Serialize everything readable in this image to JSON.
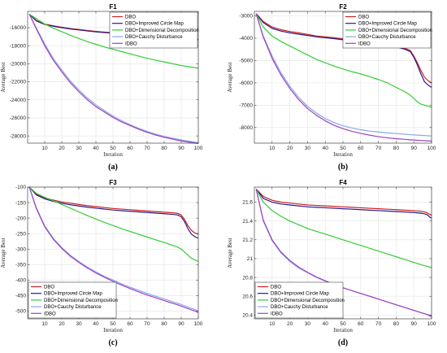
{
  "chart_data": [
    {
      "type": "line",
      "title": "F1",
      "panel_label": "(a)",
      "xlabel": "Iteration",
      "ylabel": "Average Best",
      "xlim": [
        0,
        100
      ],
      "ylim": [
        -28800,
        -14200
      ],
      "xticks": [
        10,
        20,
        30,
        40,
        50,
        60,
        70,
        80,
        90,
        100
      ],
      "yticks": [
        -28000,
        -26000,
        -24000,
        -22000,
        -20000,
        -18000,
        -16000
      ],
      "legend_position": "top-right",
      "x": [
        1,
        5,
        10,
        15,
        20,
        25,
        30,
        35,
        40,
        45,
        50,
        55,
        60,
        65,
        70,
        75,
        80,
        85,
        90,
        95,
        100
      ],
      "series": [
        {
          "name": "DBO",
          "color": "#cc2020",
          "values": [
            -14500,
            -15200,
            -15600,
            -15800,
            -15950,
            -16100,
            -16200,
            -16320,
            -16420,
            -16500,
            -16580,
            -16650,
            -16720,
            -16790,
            -16850,
            -16920,
            -16990,
            -17060,
            -17130,
            -17200,
            -17300
          ]
        },
        {
          "name": "DBO+Improved Circle Map",
          "color": "#2a1a8a",
          "values": [
            -14500,
            -15250,
            -15650,
            -15850,
            -16000,
            -16150,
            -16250,
            -16370,
            -16470,
            -16550,
            -16630,
            -16700,
            -16770,
            -16840,
            -16900,
            -16970,
            -17040,
            -17110,
            -17180,
            -17250,
            -17350
          ]
        },
        {
          "name": "DBO+Dimensional Decomposition",
          "color": "#33cc33",
          "values": [
            -14500,
            -15000,
            -15600,
            -16050,
            -16450,
            -16850,
            -17200,
            -17550,
            -17850,
            -18150,
            -18400,
            -18650,
            -18900,
            -19150,
            -19400,
            -19600,
            -19800,
            -20000,
            -20200,
            -20350,
            -20500
          ]
        },
        {
          "name": "DBO+Cauchy Disturbance",
          "color": "#88a8e8",
          "values": [
            -14500,
            -16000,
            -17800,
            -19400,
            -20700,
            -21900,
            -22900,
            -23800,
            -24550,
            -25200,
            -25800,
            -26300,
            -26750,
            -27150,
            -27500,
            -27800,
            -28050,
            -28250,
            -28450,
            -28600,
            -28750
          ]
        },
        {
          "name": "IDBO",
          "color": "#a040c0",
          "values": [
            -14500,
            -16100,
            -18000,
            -19600,
            -20900,
            -22100,
            -23100,
            -24000,
            -24750,
            -25350,
            -25950,
            -26450,
            -26850,
            -27250,
            -27600,
            -27900,
            -28150,
            -28350,
            -28550,
            -28700,
            -28850
          ]
        }
      ]
    },
    {
      "type": "line",
      "title": "F2",
      "panel_label": "(b)",
      "xlabel": "Iteration",
      "ylabel": "Average Best",
      "xlim": [
        0,
        100
      ],
      "ylim": [
        -8700,
        -2800
      ],
      "xticks": [
        10,
        20,
        30,
        40,
        50,
        60,
        70,
        80,
        90,
        100
      ],
      "yticks": [
        -8000,
        -7000,
        -6000,
        -5000,
        -4000,
        -3000
      ],
      "legend_position": "top-right",
      "x": [
        1,
        5,
        10,
        15,
        20,
        25,
        30,
        35,
        40,
        45,
        50,
        55,
        60,
        65,
        70,
        75,
        80,
        85,
        88,
        90,
        92,
        94,
        96,
        98,
        100
      ],
      "series": [
        {
          "name": "DBO",
          "color": "#cc2020",
          "values": [
            -2900,
            -3250,
            -3500,
            -3620,
            -3700,
            -3760,
            -3830,
            -3900,
            -3940,
            -3980,
            -4030,
            -4080,
            -4120,
            -4180,
            -4230,
            -4290,
            -4340,
            -4450,
            -4550,
            -4800,
            -5100,
            -5450,
            -5750,
            -5900,
            -6000
          ]
        },
        {
          "name": "DBO+Improved Circle Map",
          "color": "#2a1a8a",
          "values": [
            -2900,
            -3300,
            -3560,
            -3680,
            -3760,
            -3820,
            -3880,
            -3940,
            -3980,
            -4020,
            -4070,
            -4120,
            -4160,
            -4210,
            -4260,
            -4320,
            -4380,
            -4500,
            -4600,
            -4850,
            -5200,
            -5600,
            -5950,
            -6100,
            -6200
          ]
        },
        {
          "name": "DBO+Dimensional Decomposition",
          "color": "#33cc33",
          "values": [
            -2900,
            -3500,
            -3900,
            -4150,
            -4350,
            -4550,
            -4750,
            -4950,
            -5100,
            -5250,
            -5380,
            -5500,
            -5600,
            -5720,
            -5850,
            -6000,
            -6200,
            -6400,
            -6550,
            -6700,
            -6850,
            -6950,
            -7000,
            -7050,
            -7100
          ]
        },
        {
          "name": "DBO+Cauchy Disturbance",
          "color": "#88a8e8",
          "values": [
            -2900,
            -3900,
            -4800,
            -5550,
            -6150,
            -6650,
            -7050,
            -7350,
            -7600,
            -7780,
            -7920,
            -8020,
            -8100,
            -8160,
            -8200,
            -8240,
            -8270,
            -8300,
            -8320,
            -8330,
            -8340,
            -8350,
            -8360,
            -8370,
            -8380
          ]
        },
        {
          "name": "IDBO",
          "color": "#a040c0",
          "values": [
            -2900,
            -3950,
            -4900,
            -5650,
            -6250,
            -6750,
            -7150,
            -7450,
            -7700,
            -7900,
            -8050,
            -8170,
            -8260,
            -8340,
            -8410,
            -8460,
            -8500,
            -8530,
            -8550,
            -8560,
            -8570,
            -8580,
            -8590,
            -8600,
            -8610
          ]
        }
      ]
    },
    {
      "type": "line",
      "title": "F3",
      "panel_label": "(c)",
      "xlabel": "Iteration",
      "ylabel": "Average Best",
      "xlim": [
        0,
        100
      ],
      "ylim": [
        -525,
        -100
      ],
      "xticks": [
        10,
        20,
        30,
        40,
        50,
        60,
        70,
        80,
        90,
        100
      ],
      "yticks": [
        -500,
        -450,
        -400,
        -350,
        -300,
        -250,
        -200,
        -150,
        -100
      ],
      "legend_position": "bottom-left",
      "x": [
        1,
        5,
        10,
        15,
        20,
        25,
        30,
        35,
        40,
        45,
        50,
        55,
        60,
        65,
        70,
        75,
        80,
        85,
        88,
        90,
        92,
        94,
        96,
        98,
        100
      ],
      "series": [
        {
          "name": "DBO",
          "color": "#cc2020",
          "values": [
            -100,
            -122,
            -135,
            -142,
            -148,
            -152,
            -156,
            -160,
            -163,
            -166,
            -169,
            -171,
            -173,
            -175,
            -177,
            -179,
            -181,
            -183,
            -185,
            -190,
            -205,
            -225,
            -240,
            -248,
            -252
          ]
        },
        {
          "name": "DBO+Improved Circle Map",
          "color": "#2a1a8a",
          "values": [
            -100,
            -125,
            -138,
            -146,
            -152,
            -157,
            -161,
            -165,
            -168,
            -171,
            -174,
            -176,
            -178,
            -180,
            -182,
            -184,
            -186,
            -188,
            -190,
            -196,
            -212,
            -235,
            -252,
            -260,
            -265
          ]
        },
        {
          "name": "DBO+Dimensional Decomposition",
          "color": "#33cc33",
          "values": [
            -100,
            -120,
            -133,
            -144,
            -156,
            -168,
            -180,
            -192,
            -203,
            -214,
            -224,
            -234,
            -243,
            -252,
            -261,
            -270,
            -279,
            -288,
            -294,
            -300,
            -310,
            -320,
            -330,
            -335,
            -340
          ]
        },
        {
          "name": "DBO+Cauchy Disturbance",
          "color": "#88a8e8",
          "values": [
            -100,
            -165,
            -225,
            -265,
            -295,
            -320,
            -340,
            -358,
            -374,
            -388,
            -400,
            -412,
            -423,
            -433,
            -443,
            -452,
            -461,
            -470,
            -475,
            -479,
            -483,
            -487,
            -491,
            -495,
            -500
          ]
        },
        {
          "name": "IDBO",
          "color": "#a040c0",
          "values": [
            -100,
            -168,
            -228,
            -268,
            -298,
            -323,
            -343,
            -361,
            -377,
            -391,
            -404,
            -416,
            -427,
            -438,
            -448,
            -457,
            -466,
            -475,
            -480,
            -484,
            -488,
            -492,
            -496,
            -500,
            -505
          ]
        }
      ]
    },
    {
      "type": "line",
      "title": "F4",
      "panel_label": "(d)",
      "xlabel": "Iteration",
      "ylabel": "Average Best",
      "xlim": [
        0,
        100
      ],
      "ylim": [
        20.36,
        21.76
      ],
      "xticks": [
        10,
        20,
        30,
        40,
        50,
        60,
        70,
        80,
        90,
        100
      ],
      "yticks": [
        20.4,
        20.6,
        20.8,
        21,
        21.2,
        21.4,
        21.6
      ],
      "ytick_labels": [
        "20.4",
        "20.6",
        "20.8",
        "21",
        "21.2",
        "21.4",
        "21.6"
      ],
      "legend_position": "bottom-left",
      "x": [
        1,
        5,
        10,
        15,
        20,
        25,
        30,
        35,
        40,
        45,
        50,
        55,
        60,
        65,
        70,
        75,
        80,
        85,
        90,
        95,
        97,
        98,
        99,
        100
      ],
      "series": [
        {
          "name": "DBO",
          "color": "#cc2020",
          "values": [
            21.74,
            21.66,
            21.62,
            21.6,
            21.59,
            21.58,
            21.57,
            21.565,
            21.56,
            21.555,
            21.55,
            21.545,
            21.54,
            21.535,
            21.53,
            21.525,
            21.52,
            21.515,
            21.51,
            21.5,
            21.49,
            21.48,
            21.47,
            21.46
          ]
        },
        {
          "name": "DBO+Improved Circle Map",
          "color": "#2a1a8a",
          "values": [
            21.74,
            21.64,
            21.6,
            21.58,
            21.57,
            21.56,
            21.55,
            21.545,
            21.54,
            21.535,
            21.53,
            21.525,
            21.52,
            21.515,
            21.51,
            21.505,
            21.5,
            21.495,
            21.49,
            21.48,
            21.47,
            21.46,
            21.44,
            21.43
          ]
        },
        {
          "name": "DBO+Dimensional Decomposition",
          "color": "#33cc33",
          "values": [
            21.74,
            21.6,
            21.51,
            21.45,
            21.4,
            21.36,
            21.32,
            21.29,
            21.26,
            21.23,
            21.2,
            21.17,
            21.14,
            21.11,
            21.08,
            21.05,
            21.02,
            20.99,
            20.96,
            20.93,
            20.92,
            20.915,
            20.91,
            20.905
          ]
        },
        {
          "name": "DBO+Cauchy Disturbance",
          "color": "#88a8e8",
          "values": [
            21.74,
            21.4,
            21.19,
            21.06,
            20.97,
            20.9,
            20.85,
            20.8,
            20.76,
            20.72,
            20.69,
            20.66,
            20.63,
            20.6,
            20.57,
            20.54,
            20.51,
            20.48,
            20.45,
            20.42,
            20.41,
            20.405,
            20.4,
            20.395
          ]
        },
        {
          "name": "IDBO",
          "color": "#a040c0",
          "values": [
            21.74,
            21.41,
            21.2,
            21.07,
            20.98,
            20.91,
            20.855,
            20.805,
            20.765,
            20.725,
            20.69,
            20.66,
            20.63,
            20.6,
            20.57,
            20.54,
            20.51,
            20.48,
            20.45,
            20.42,
            20.41,
            20.4,
            20.39,
            20.385
          ]
        }
      ]
    }
  ]
}
